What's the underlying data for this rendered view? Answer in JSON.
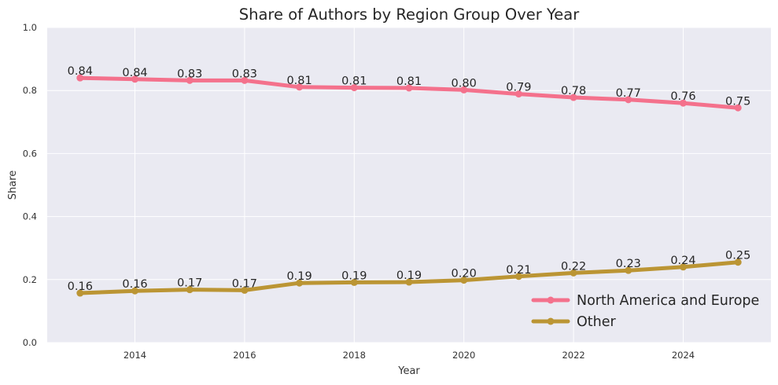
{
  "chart_data": {
    "type": "line",
    "title": "Share of Authors by Region Group Over Year",
    "xlabel": "Year",
    "ylabel": "Share",
    "x": [
      2013,
      2014,
      2015,
      2016,
      2017,
      2018,
      2019,
      2020,
      2021,
      2022,
      2023,
      2024,
      2025
    ],
    "xlim": [
      2012.4,
      2025.6
    ],
    "xticks": [
      2014,
      2016,
      2018,
      2020,
      2022,
      2024
    ],
    "ylim": [
      0,
      1
    ],
    "yticks": [
      "0.0",
      "0.2",
      "0.4",
      "0.6",
      "0.8",
      "1.0"
    ],
    "grid": true,
    "legend_position": "lower-right",
    "series": [
      {
        "name": "North America and Europe",
        "color": "#f4718c",
        "values": [
          0.84,
          0.836,
          0.832,
          0.832,
          0.811,
          0.809,
          0.808,
          0.802,
          0.789,
          0.778,
          0.771,
          0.76,
          0.745
        ],
        "labels": [
          "0.84",
          "0.84",
          "0.83",
          "0.83",
          "0.81",
          "0.81",
          "0.81",
          "0.80",
          "0.79",
          "0.78",
          "0.77",
          "0.76",
          "0.75"
        ]
      },
      {
        "name": "Other",
        "color": "#bb9534",
        "values": [
          0.157,
          0.164,
          0.168,
          0.166,
          0.189,
          0.191,
          0.192,
          0.198,
          0.21,
          0.221,
          0.229,
          0.24,
          0.255
        ],
        "labels": [
          "0.16",
          "0.16",
          "0.17",
          "0.17",
          "0.19",
          "0.19",
          "0.19",
          "0.20",
          "0.21",
          "0.22",
          "0.23",
          "0.24",
          "0.25"
        ]
      }
    ]
  }
}
